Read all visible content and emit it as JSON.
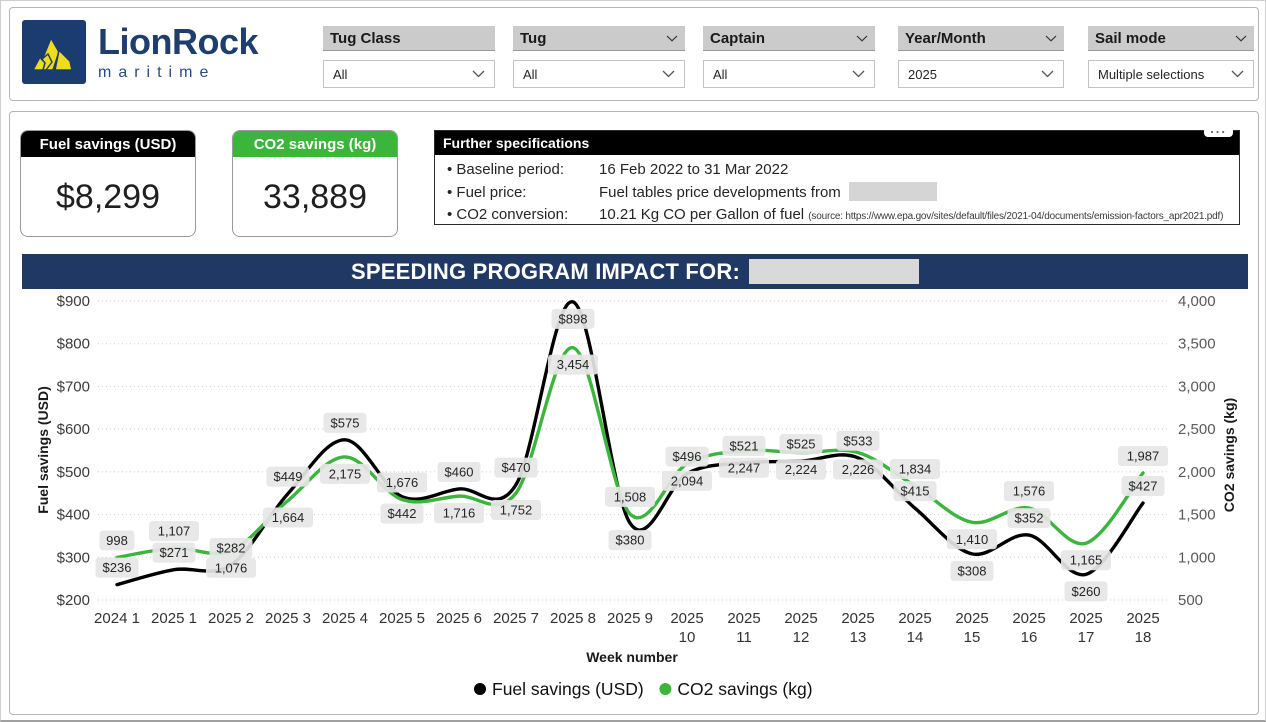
{
  "header": {
    "logo": {
      "name_primary": "LionRock",
      "name_secondary": "maritime"
    },
    "slicers": [
      {
        "label": "Tug Class",
        "value": "All"
      },
      {
        "label": "Tug",
        "value": "All"
      },
      {
        "label": "Captain",
        "value": "All"
      },
      {
        "label": "Year/Month",
        "value": "2025"
      },
      {
        "label": "Sail mode",
        "value": "Multiple selections"
      }
    ]
  },
  "kpis": [
    {
      "title": "Fuel savings (USD)",
      "value": "$8,299",
      "header_color": "#000000"
    },
    {
      "title": "CO2 savings (kg)",
      "value": "33,889",
      "header_color": "#3cb53c"
    }
  ],
  "specifications": {
    "title": "Further specifications",
    "more_options": "...",
    "rows": [
      {
        "label": "Baseline period:",
        "value": "16 Feb 2022 to 31 Mar 2022"
      },
      {
        "label": "Fuel price:",
        "value": "Fuel tables price developments from"
      },
      {
        "label": "CO2 conversion:",
        "value": "10.21 Kg CO per Gallon of fuel",
        "source_note": "(source: https://www.epa.gov/sites/default/files/2021-04/documents/emission-factors_apr2021.pdf)"
      }
    ]
  },
  "chart": {
    "title": "SPEEDING PROGRAM IMPACT FOR:"
  },
  "chart_data": {
    "type": "line",
    "categories": [
      "2024 1",
      "2025 1",
      "2025 2",
      "2025 3",
      "2025 4",
      "2025 5",
      "2025 6",
      "2025 7",
      "2025 8",
      "2025 9",
      "2025 10",
      "2025 11",
      "2025 12",
      "2025 13",
      "2025 14",
      "2025 15",
      "2025 16",
      "2025 17",
      "2025 18"
    ],
    "series": [
      {
        "name": "Fuel savings (USD)",
        "color": "#000000",
        "axis": "left",
        "values": [
          236,
          271,
          282,
          449,
          575,
          442,
          460,
          470,
          898,
          380,
          496,
          521,
          525,
          533,
          415,
          308,
          352,
          260,
          427
        ],
        "label_side": [
          "above",
          "above",
          "above",
          "above",
          "above",
          "below",
          "above",
          "above",
          "below",
          "below",
          "above",
          "above",
          "above",
          "above",
          "above",
          "below",
          "above",
          "below",
          "above"
        ]
      },
      {
        "name": "CO2 savings (kg)",
        "color": "#3cb53c",
        "axis": "right",
        "values": [
          998,
          1107,
          1076,
          1664,
          2175,
          1676,
          1716,
          1752,
          3454,
          1508,
          2094,
          2247,
          2224,
          2226,
          1834,
          1410,
          1576,
          1165,
          1987
        ],
        "label_side": [
          "above",
          "above",
          "below",
          "below",
          "below",
          "above",
          "below",
          "below",
          "below",
          "above",
          "below",
          "below",
          "below",
          "below",
          "above",
          "below",
          "above",
          "below",
          "above"
        ]
      }
    ],
    "xlabel": "Week number",
    "left_axis": {
      "title": "Fuel savings (USD)",
      "min": 200,
      "max": 900,
      "step": 100,
      "format": "usd"
    },
    "right_axis": {
      "title": "CO2 savings (kg)",
      "min": 500,
      "max": 4000,
      "step": 500,
      "format": "thousands"
    },
    "grid": "dotted",
    "legend_position": "bottom"
  }
}
